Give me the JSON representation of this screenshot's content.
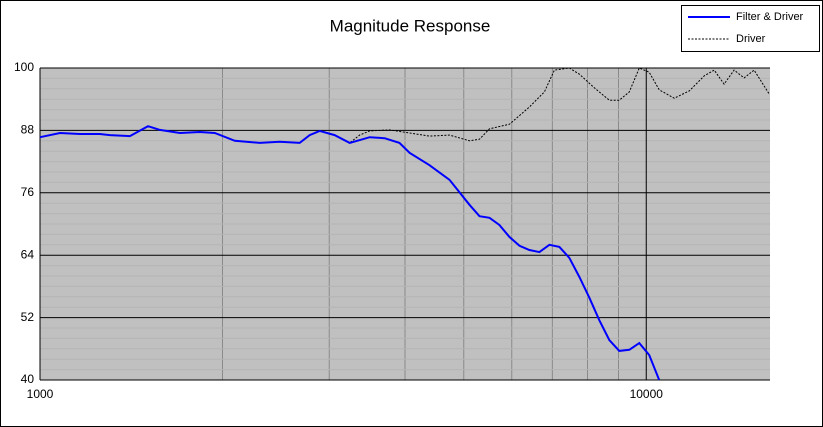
{
  "chart_data": {
    "type": "line",
    "title": "Magnitude Response",
    "xscale": "log",
    "xlim": [
      1000,
      16000
    ],
    "xticks": [
      1000,
      10000
    ],
    "ylim": [
      40,
      100
    ],
    "yticks": [
      40,
      52,
      64,
      76,
      88,
      100
    ],
    "grid": true,
    "minor_grid": true,
    "legend": "top-right",
    "series": [
      {
        "name": "Filter & Driver",
        "color": "#0000ff",
        "style": "solid",
        "x": [
          1000,
          1079,
          1164,
          1255,
          1304,
          1407,
          1507,
          1577,
          1701,
          1835,
          1942,
          2096,
          2304,
          2485,
          2681,
          2785,
          2893,
          3062,
          3242,
          3498,
          3702,
          3917,
          4070,
          4390,
          4737,
          5110,
          5308,
          5513,
          5726,
          5948,
          6178,
          6417,
          6665,
          6922,
          7190,
          7467,
          7757,
          8057,
          8368,
          8691,
          9027,
          9376,
          9739,
          10113,
          10505
        ],
        "values": [
          86.7,
          87.5,
          87.3,
          87.3,
          87.1,
          86.9,
          88.8,
          88.1,
          87.5,
          87.7,
          87.5,
          86,
          85.6,
          85.8,
          85.6,
          87.1,
          87.9,
          87.1,
          85.6,
          86.7,
          86.5,
          85.6,
          83.7,
          81.3,
          78.5,
          73.7,
          71.5,
          71.2,
          69.8,
          67.5,
          65.8,
          65,
          64.6,
          66,
          65.6,
          63.5,
          59.8,
          55.8,
          51.5,
          47.7,
          45.6,
          45.8,
          47.1,
          44.8,
          40
        ]
      },
      {
        "name": "Driver",
        "color": "#000000",
        "style": "dashed",
        "x": [
          1000,
          1079,
          1164,
          1255,
          1304,
          1407,
          1507,
          1577,
          1701,
          1835,
          1942,
          2096,
          2304,
          2485,
          2681,
          2785,
          2893,
          3062,
          3242,
          3367,
          3498,
          3772,
          4070,
          4390,
          4737,
          5110,
          5308,
          5513,
          5948,
          6417,
          6792,
          7054,
          7467,
          7757,
          8210,
          8691,
          9027,
          9376,
          9739,
          10113,
          10505,
          11120,
          11776,
          12466,
          12942,
          13442,
          13963,
          14502,
          15063,
          15950
        ],
        "values": [
          86.7,
          87.5,
          87.3,
          87.3,
          87.1,
          86.9,
          88.8,
          88.1,
          87.5,
          87.7,
          87.5,
          86,
          85.6,
          85.8,
          85.6,
          87.1,
          87.9,
          87.1,
          85.6,
          87.1,
          87.9,
          88.1,
          87.5,
          86.9,
          87.1,
          86,
          86.3,
          88.3,
          89.2,
          92.5,
          95.4,
          99.6,
          100,
          98.8,
          96.2,
          93.8,
          93.8,
          95.4,
          100,
          99.2,
          95.8,
          94.2,
          95.6,
          98.5,
          99.6,
          96.9,
          99.6,
          98.1,
          99.6,
          95
        ]
      }
    ]
  }
}
